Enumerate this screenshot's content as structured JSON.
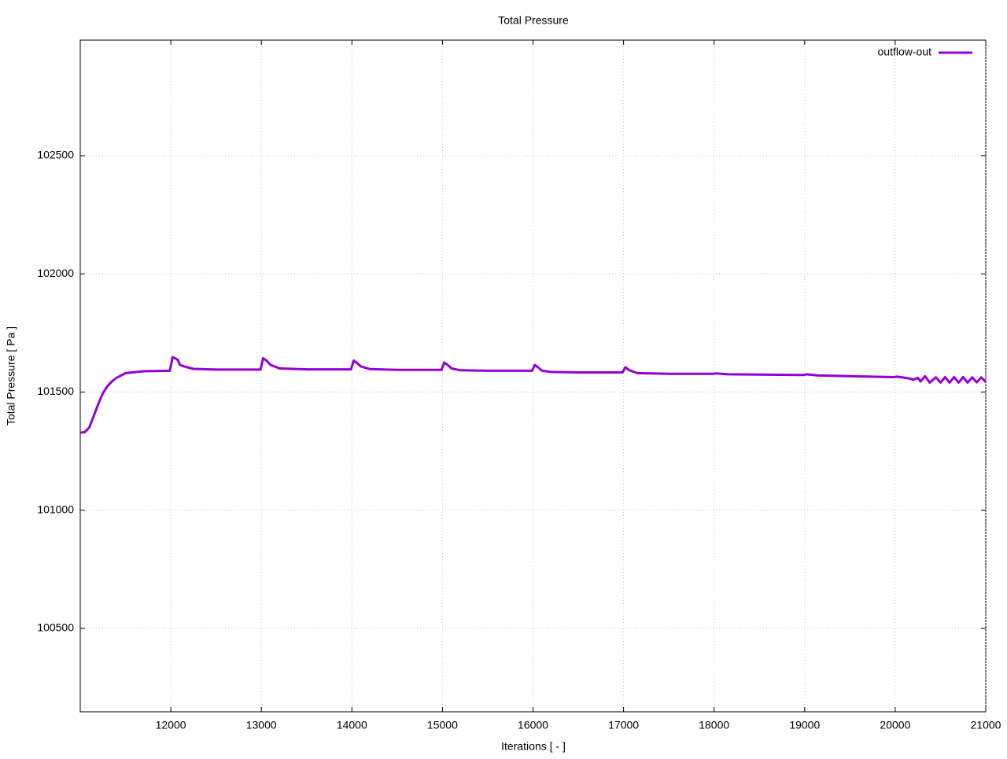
{
  "chart_data": {
    "type": "line",
    "title": "Total Pressure",
    "x_label": "Iterations [ - ]",
    "y_label": "Total Pressure [ Pa ]",
    "xlim": [
      11000,
      21000
    ],
    "ylim": [
      100147,
      102989
    ],
    "xticks": [
      12000,
      13000,
      14000,
      15000,
      16000,
      17000,
      18000,
      19000,
      20000,
      21000
    ],
    "yticks": [
      100500,
      101000,
      101500,
      102000,
      102500
    ],
    "grid": true,
    "legend": "top-right",
    "x": [
      11000,
      11050,
      11100,
      11150,
      11200,
      11250,
      11300,
      11350,
      11400,
      11450,
      11500,
      11700,
      11990,
      12020,
      12060,
      12080,
      12100,
      12150,
      12250,
      12500,
      12990,
      13020,
      13060,
      13100,
      13200,
      13500,
      13990,
      14020,
      14060,
      14100,
      14200,
      14500,
      14990,
      15020,
      15060,
      15100,
      15200,
      15500,
      15990,
      16020,
      16060,
      16100,
      16200,
      16500,
      16990,
      17020,
      17060,
      17150,
      17500,
      17990,
      18020,
      18150,
      18990,
      19020,
      19150,
      19990,
      20020,
      20150,
      20200,
      20250,
      20280,
      20330,
      20380,
      20450,
      20500,
      20550,
      20600,
      20650,
      20700,
      20750,
      20800,
      20850,
      20900,
      20950,
      21000
    ],
    "series": [
      {
        "name": "outflow-out",
        "color": "#9400d3",
        "values": [
          101328,
          101330,
          101350,
          101400,
          101450,
          101495,
          101525,
          101545,
          101560,
          101570,
          101580,
          101588,
          101590,
          101648,
          101640,
          101635,
          101615,
          101608,
          101598,
          101595,
          101595,
          101643,
          101632,
          101615,
          101600,
          101596,
          101596,
          101633,
          101622,
          101608,
          101597,
          101594,
          101594,
          101625,
          101614,
          101600,
          101592,
          101590,
          101590,
          101615,
          101603,
          101590,
          101585,
          101583,
          101583,
          101605,
          101593,
          101580,
          101577,
          101577,
          101579,
          101575,
          101572,
          101575,
          101570,
          101563,
          101565,
          101558,
          101552,
          101560,
          101545,
          101567,
          101540,
          101562,
          101540,
          101563,
          101540,
          101563,
          101540,
          101563,
          101540,
          101562,
          101541,
          101562,
          101543
        ]
      }
    ]
  }
}
